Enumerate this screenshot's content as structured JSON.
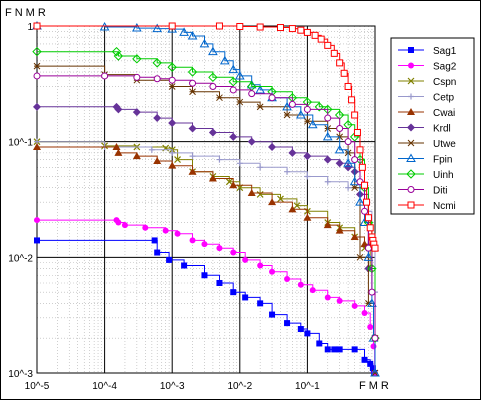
{
  "chart_data": {
    "type": "line",
    "title": "",
    "xlabel": "FMR",
    "ylabel": "FNMR",
    "xscale": "log",
    "yscale": "log",
    "xlim": [
      1e-05,
      1
    ],
    "ylim": [
      0.001,
      1
    ],
    "grid": true,
    "legend_position": "right",
    "x_ticks": [
      {
        "value": 1e-05,
        "label": "10^-5"
      },
      {
        "value": 0.0001,
        "label": "10^-4"
      },
      {
        "value": 0.001,
        "label": "10^-3"
      },
      {
        "value": 0.01,
        "label": "10^-2"
      },
      {
        "value": 0.1,
        "label": "10^-1"
      }
    ],
    "y_ticks": [
      {
        "value": 1,
        "label": "1"
      },
      {
        "value": 0.1,
        "label": "10^-1"
      },
      {
        "value": 0.01,
        "label": "10^-2"
      },
      {
        "value": 0.001,
        "label": "10^-3"
      }
    ],
    "series": [
      {
        "name": "Sag1",
        "color": "#0000ff",
        "marker": "square",
        "x": [
          1e-05,
          0.00055,
          0.0006,
          0.0009,
          0.0015,
          0.003,
          0.005,
          0.008,
          0.012,
          0.02,
          0.03,
          0.05,
          0.08,
          0.1,
          0.15,
          0.2,
          0.25,
          0.3,
          0.5,
          0.7,
          0.85,
          0.93,
          0.97
        ],
        "y": [
          0.014,
          0.014,
          0.011,
          0.0095,
          0.0085,
          0.007,
          0.006,
          0.005,
          0.0045,
          0.004,
          0.0032,
          0.0027,
          0.0024,
          0.0022,
          0.0018,
          0.0016,
          0.0016,
          0.0016,
          0.0016,
          0.0013,
          0.0012,
          0.0011,
          0.001
        ]
      },
      {
        "name": "Sag2",
        "color": "#ff00ff",
        "marker": "circle",
        "x": [
          1e-05,
          0.00015,
          0.00016,
          0.0002,
          0.0004,
          0.0008,
          0.0012,
          0.002,
          0.003,
          0.005,
          0.008,
          0.012,
          0.02,
          0.03,
          0.05,
          0.08,
          0.12,
          0.2,
          0.3,
          0.5,
          0.7,
          0.85,
          0.95,
          0.99
        ],
        "y": [
          0.021,
          0.021,
          0.02,
          0.019,
          0.018,
          0.017,
          0.016,
          0.014,
          0.013,
          0.012,
          0.011,
          0.0095,
          0.0085,
          0.0075,
          0.0065,
          0.0058,
          0.0052,
          0.0045,
          0.0042,
          0.0038,
          0.0033,
          0.0025,
          0.0017,
          0.001
        ]
      },
      {
        "name": "Cspn",
        "color": "#808000",
        "marker": "x",
        "x": [
          1e-05,
          0.0001,
          0.0003,
          0.0008,
          0.001,
          0.0012,
          0.002,
          0.004,
          0.007,
          0.01,
          0.02,
          0.04,
          0.07,
          0.1,
          0.2,
          0.3,
          0.5,
          0.7,
          0.85,
          1.0
        ],
        "y": [
          0.1,
          0.092,
          0.09,
          0.088,
          0.085,
          0.07,
          0.055,
          0.05,
          0.045,
          0.04,
          0.035,
          0.032,
          0.028,
          0.025,
          0.02,
          0.018,
          0.015,
          0.012,
          0.008,
          0.002
        ]
      },
      {
        "name": "Cetp",
        "color": "#9999cc",
        "marker": "plus",
        "x": [
          1e-05,
          0.0001,
          0.0005,
          0.001,
          0.002,
          0.005,
          0.01,
          0.02,
          0.05,
          0.1,
          0.2,
          0.4,
          0.6,
          0.8,
          0.9,
          1.0
        ],
        "y": [
          0.1,
          0.09,
          0.085,
          0.08,
          0.075,
          0.07,
          0.065,
          0.06,
          0.055,
          0.05,
          0.045,
          0.04,
          0.035,
          0.025,
          0.015,
          0.005
        ]
      },
      {
        "name": "Cwai",
        "color": "#993300",
        "marker": "triangle",
        "x": [
          1e-05,
          0.00015,
          0.00016,
          0.0003,
          0.0006,
          0.001,
          0.002,
          0.004,
          0.008,
          0.015,
          0.03,
          0.06,
          0.1,
          0.2,
          0.3,
          0.5,
          0.7,
          0.85,
          1.0
        ],
        "y": [
          0.09,
          0.09,
          0.08,
          0.075,
          0.068,
          0.062,
          0.055,
          0.048,
          0.042,
          0.036,
          0.03,
          0.026,
          0.022,
          0.019,
          0.017,
          0.015,
          0.013,
          0.012,
          0.012
        ]
      },
      {
        "name": "Krdl",
        "color": "#663399",
        "marker": "diamond",
        "x": [
          1e-05,
          0.00015,
          0.00016,
          0.0003,
          0.0006,
          0.001,
          0.002,
          0.004,
          0.008,
          0.015,
          0.03,
          0.06,
          0.1,
          0.2,
          0.3,
          0.4,
          0.5,
          0.6,
          0.8,
          1.0
        ],
        "y": [
          0.2,
          0.2,
          0.19,
          0.18,
          0.16,
          0.145,
          0.13,
          0.12,
          0.11,
          0.1,
          0.09,
          0.08,
          0.075,
          0.07,
          0.065,
          0.06,
          0.055,
          0.035,
          0.008,
          0.002
        ]
      },
      {
        "name": "Utwe",
        "color": "#663300",
        "marker": "star",
        "x": [
          1e-05,
          0.0001,
          0.0003,
          0.001,
          0.002,
          0.005,
          0.01,
          0.02,
          0.05,
          0.1,
          0.2,
          0.3,
          0.4,
          0.5,
          0.6,
          0.8,
          1.0
        ],
        "y": [
          0.45,
          0.38,
          0.34,
          0.3,
          0.27,
          0.24,
          0.22,
          0.2,
          0.17,
          0.15,
          0.13,
          0.11,
          0.08,
          0.04,
          0.01,
          0.004,
          0.001
        ]
      },
      {
        "name": "Fpin",
        "color": "#0066cc",
        "marker": "triangle-open",
        "x": [
          1e-05,
          0.0001,
          0.0003,
          0.0006,
          0.001,
          0.0015,
          0.002,
          0.003,
          0.004,
          0.006,
          0.008,
          0.01,
          0.015,
          0.02,
          0.03,
          0.05,
          0.08,
          0.12,
          0.2,
          0.3,
          0.4,
          0.5,
          0.6,
          0.7,
          0.8,
          0.9,
          0.95,
          1.0
        ],
        "y": [
          1.0,
          0.98,
          0.96,
          0.95,
          0.94,
          0.88,
          0.82,
          0.7,
          0.6,
          0.5,
          0.42,
          0.37,
          0.31,
          0.28,
          0.24,
          0.2,
          0.17,
          0.14,
          0.11,
          0.085,
          0.065,
          0.045,
          0.03,
          0.02,
          0.01,
          0.004,
          0.002,
          0.001
        ]
      },
      {
        "name": "Uinh",
        "color": "#00cc00",
        "marker": "diamond-open",
        "x": [
          1e-05,
          0.00015,
          0.00016,
          0.0003,
          0.0006,
          0.001,
          0.002,
          0.004,
          0.008,
          0.015,
          0.03,
          0.06,
          0.1,
          0.15,
          0.2,
          0.3,
          0.4,
          0.5,
          0.6,
          0.7,
          0.8,
          0.9,
          1.0
        ],
        "y": [
          0.6,
          0.6,
          0.55,
          0.52,
          0.48,
          0.44,
          0.4,
          0.36,
          0.33,
          0.3,
          0.27,
          0.24,
          0.22,
          0.2,
          0.19,
          0.17,
          0.14,
          0.11,
          0.07,
          0.04,
          0.02,
          0.008,
          0.002
        ]
      },
      {
        "name": "Diti",
        "color": "#990099",
        "marker": "circle-open",
        "x": [
          1e-05,
          0.0001,
          0.0003,
          0.0006,
          0.001,
          0.002,
          0.004,
          0.008,
          0.015,
          0.03,
          0.06,
          0.1,
          0.2,
          0.3,
          0.4,
          0.5,
          0.6,
          0.7,
          0.8,
          0.9,
          1.0
        ],
        "y": [
          0.37,
          0.37,
          0.36,
          0.35,
          0.34,
          0.32,
          0.3,
          0.28,
          0.26,
          0.24,
          0.21,
          0.19,
          0.16,
          0.13,
          0.1,
          0.07,
          0.045,
          0.025,
          0.012,
          0.005,
          0.002
        ]
      },
      {
        "name": "Ncmi",
        "color": "#ff0000",
        "marker": "square-open",
        "x": [
          1e-05,
          0.001,
          0.005,
          0.01,
          0.02,
          0.04,
          0.06,
          0.08,
          0.1,
          0.13,
          0.16,
          0.2,
          0.25,
          0.3,
          0.35,
          0.4,
          0.45,
          0.5,
          0.55,
          0.6,
          0.65,
          0.7,
          0.75,
          0.8,
          0.85,
          0.9,
          0.93,
          0.96,
          1.0
        ],
        "y": [
          1.0,
          1.0,
          1.0,
          0.99,
          0.98,
          0.97,
          0.95,
          0.92,
          0.88,
          0.83,
          0.77,
          0.68,
          0.58,
          0.48,
          0.39,
          0.3,
          0.23,
          0.17,
          0.12,
          0.085,
          0.06,
          0.042,
          0.03,
          0.022,
          0.018,
          0.015,
          0.014,
          0.013,
          0.012
        ]
      }
    ]
  }
}
